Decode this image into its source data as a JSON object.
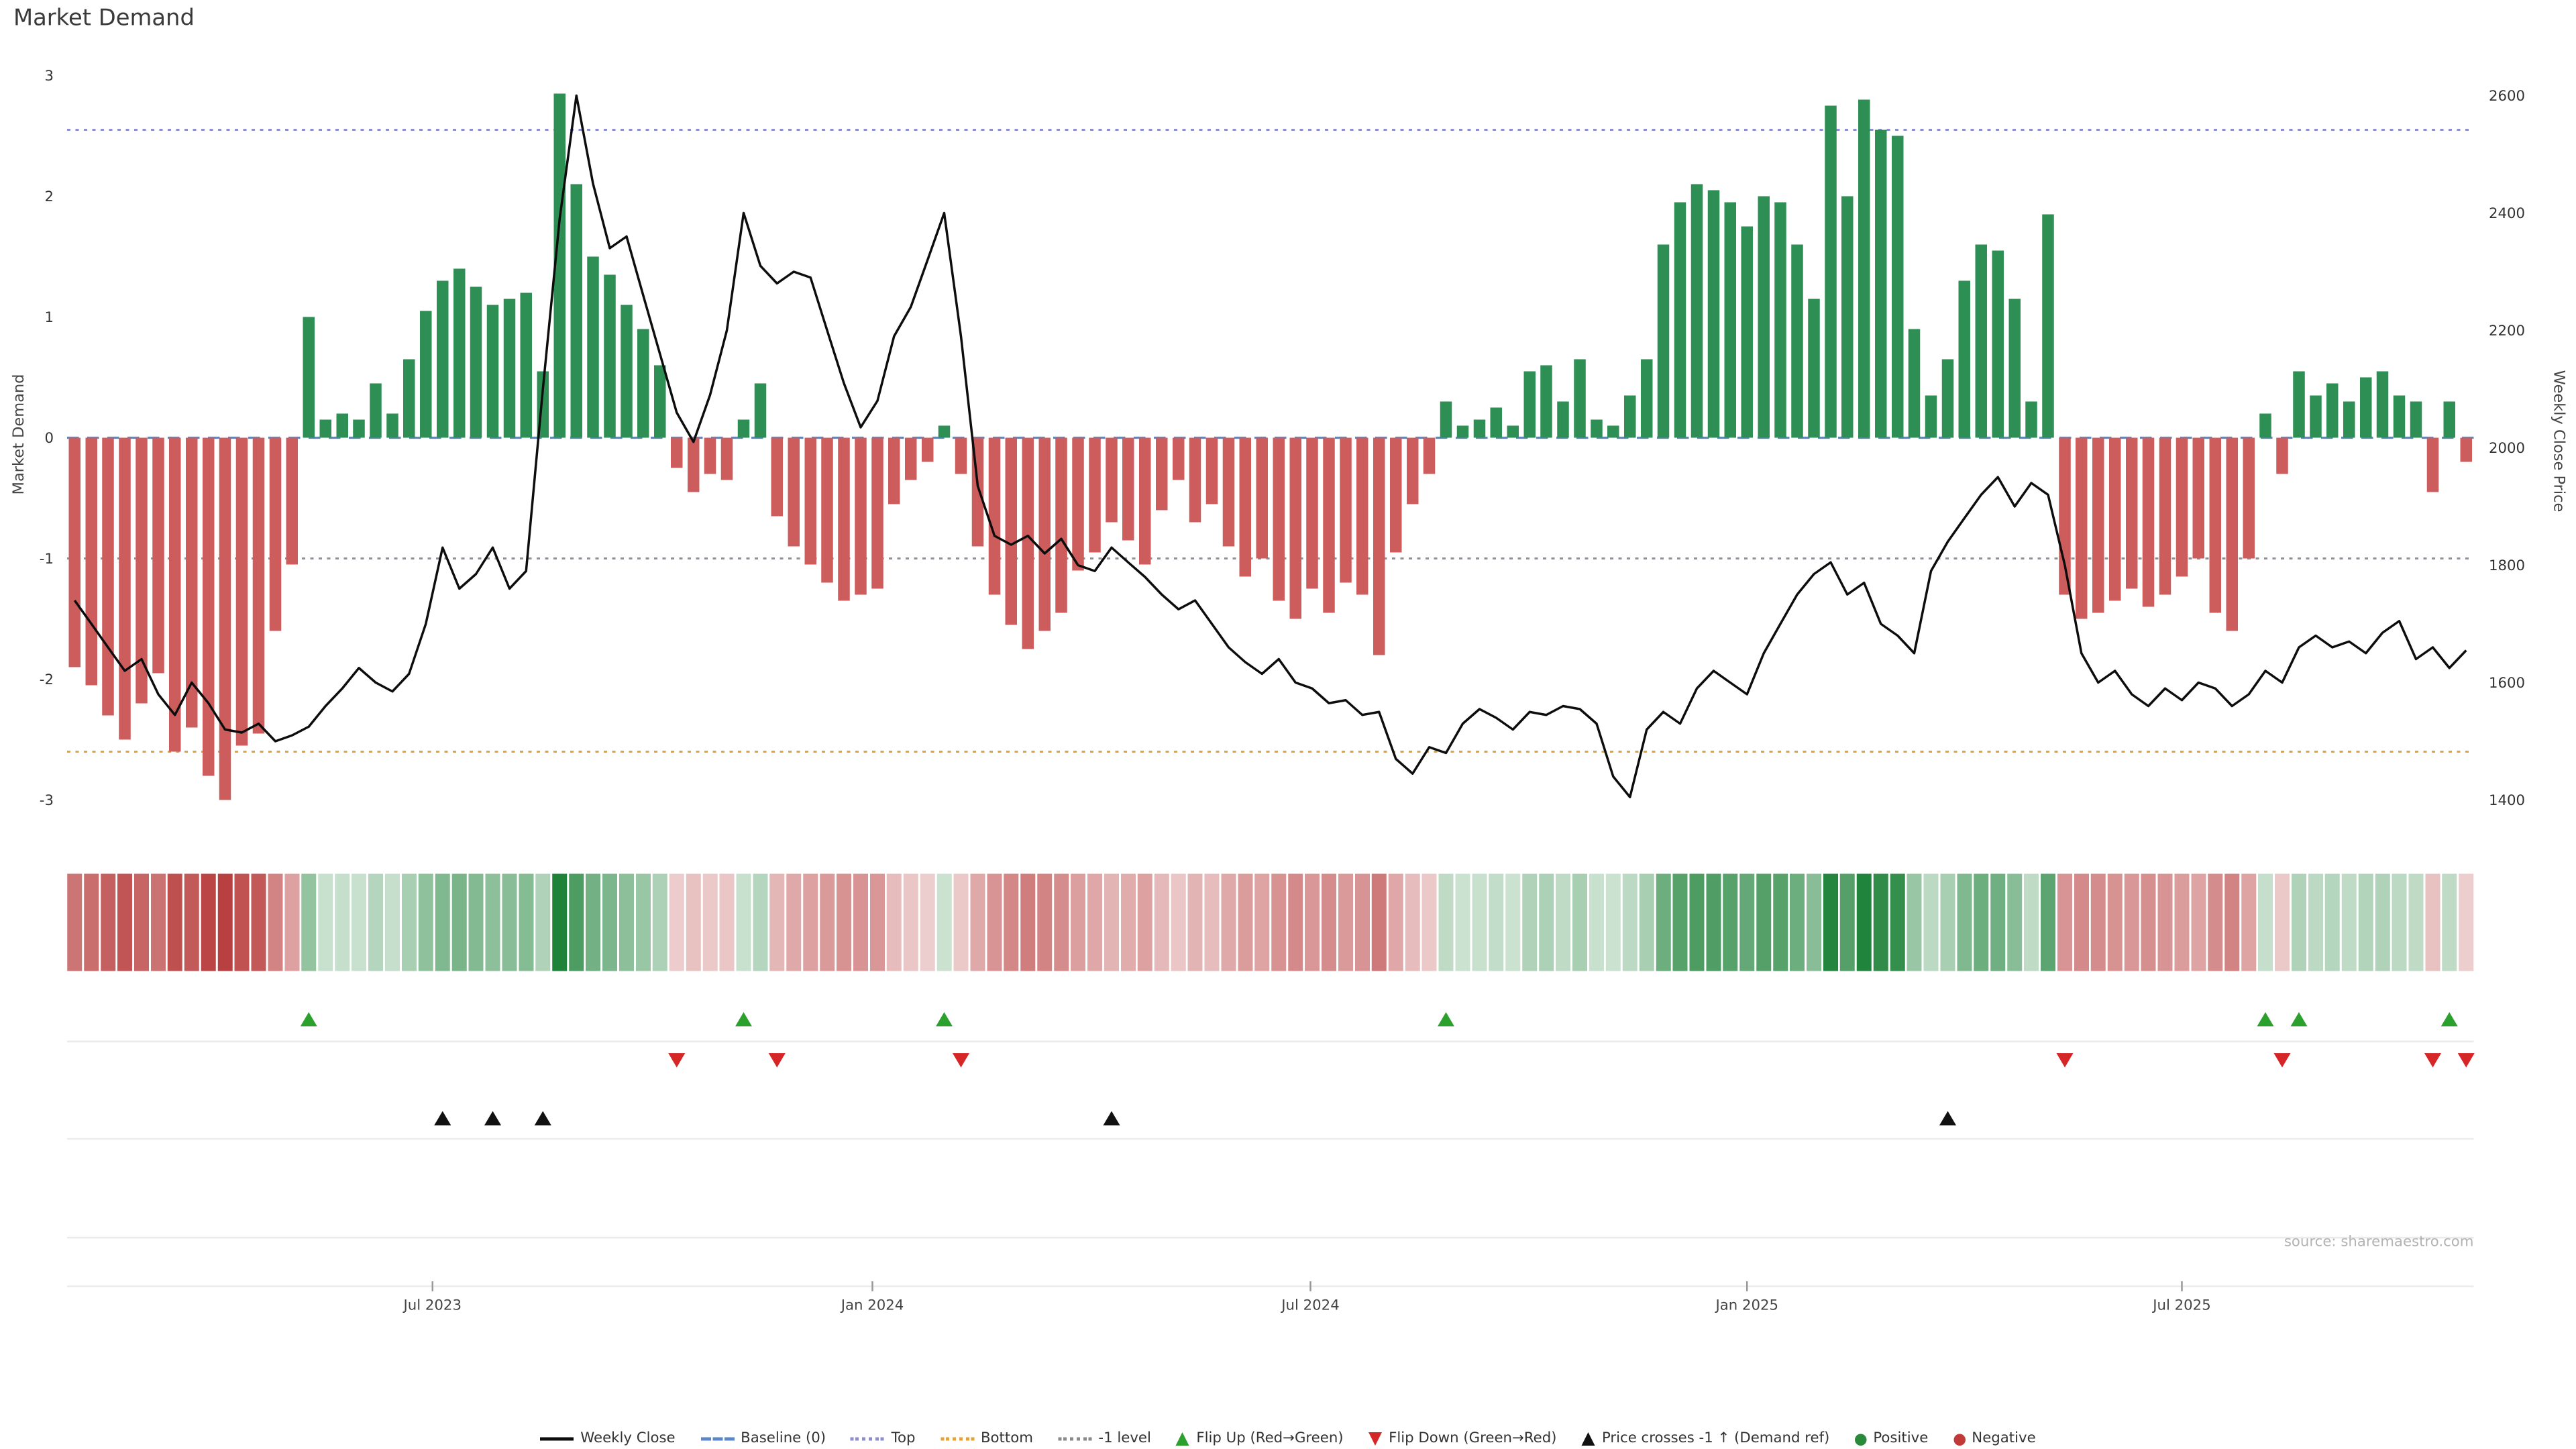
{
  "title": "Market Demand",
  "source": "source: sharemaestro.com",
  "axes": {
    "left_label": "Market Demand",
    "right_label": "Weekly Close Price",
    "left_ticks": [
      3,
      2,
      1,
      0,
      -1,
      -2,
      -3
    ],
    "right_ticks": [
      2600,
      2400,
      2200,
      2000,
      1800,
      1600,
      1400
    ],
    "x_ticks": [
      {
        "label": "Jul 2023",
        "index": 21.4
      },
      {
        "label": "Jan 2024",
        "index": 47.7
      },
      {
        "label": "Jul 2024",
        "index": 73.9
      },
      {
        "label": "Jan 2025",
        "index": 100.0
      },
      {
        "label": "Jul 2025",
        "index": 126.0
      }
    ]
  },
  "colors": {
    "positive": "#2e8f55",
    "negative": "#cd5c5c",
    "price_line": "#0d0d0d",
    "baseline_line": "#5b87c9",
    "top_line": "#8d8dd4",
    "bottom_line": "#e2a33c",
    "minus_one_line": "#8f8f9c",
    "flip_up": "#2ca02c",
    "flip_down": "#d62728",
    "price_cross": "#111111",
    "heat_green": "#1b8036",
    "heat_red": "#b94040"
  },
  "chart_data": {
    "type": "bar",
    "title": "Market Demand",
    "x_unit": "week",
    "x_range_label": "early 2023 to late 2025",
    "ylabel_left": "Market Demand",
    "ylabel_right": "Weekly Close Price",
    "ylim_left": [
      -3,
      3
    ],
    "ylim_right": [
      1400,
      2600
    ],
    "grid": false,
    "legend_position": "bottom",
    "reference_lines": {
      "baseline": 0,
      "top": 2.55,
      "bottom": -2.6,
      "minus_one": -1
    },
    "series": [
      {
        "name": "Market Demand",
        "type": "bar",
        "values": [
          -1.9,
          -2.05,
          -2.3,
          -2.5,
          -2.2,
          -1.95,
          -2.6,
          -2.4,
          -2.8,
          -3.0,
          -2.55,
          -2.45,
          -1.6,
          -1.05,
          1.0,
          0.15,
          0.2,
          0.15,
          0.45,
          0.2,
          0.65,
          1.05,
          1.3,
          1.4,
          1.25,
          1.1,
          1.15,
          1.2,
          0.55,
          2.85,
          2.1,
          1.5,
          1.35,
          1.1,
          0.9,
          0.6,
          -0.25,
          -0.45,
          -0.3,
          -0.35,
          0.15,
          0.45,
          -0.65,
          -0.9,
          -1.05,
          -1.2,
          -1.35,
          -1.3,
          -1.25,
          -0.55,
          -0.35,
          -0.2,
          0.1,
          -0.3,
          -0.9,
          -1.3,
          -1.55,
          -1.75,
          -1.6,
          -1.45,
          -1.1,
          -0.95,
          -0.7,
          -0.85,
          -1.05,
          -0.6,
          -0.35,
          -0.7,
          -0.55,
          -0.9,
          -1.15,
          -1.0,
          -1.35,
          -1.5,
          -1.25,
          -1.45,
          -1.2,
          -1.3,
          -1.8,
          -0.95,
          -0.55,
          -0.3,
          0.3,
          0.1,
          0.15,
          0.25,
          0.1,
          0.55,
          0.6,
          0.3,
          0.65,
          0.15,
          0.1,
          0.35,
          0.65,
          1.6,
          1.95,
          2.1,
          2.05,
          1.95,
          1.75,
          2.0,
          1.95,
          1.6,
          1.15,
          2.75,
          2.0,
          2.8,
          2.55,
          2.5,
          0.9,
          0.35,
          0.65,
          1.3,
          1.6,
          1.55,
          1.15,
          0.3,
          1.85,
          -1.3,
          -1.5,
          -1.45,
          -1.35,
          -1.25,
          -1.4,
          -1.3,
          -1.15,
          -1.0,
          -1.45,
          -1.6,
          -1.0,
          0.2,
          -0.3,
          0.55,
          0.35,
          0.45,
          0.3,
          0.5,
          0.55,
          0.35,
          0.3,
          -0.45,
          0.3,
          -0.2
        ]
      },
      {
        "name": "Weekly Close",
        "type": "line",
        "values": [
          1740,
          1700,
          1660,
          1620,
          1640,
          1580,
          1545,
          1600,
          1565,
          1520,
          1515,
          1530,
          1500,
          1510,
          1525,
          1560,
          1590,
          1625,
          1600,
          1585,
          1615,
          1700,
          1830,
          1760,
          1785,
          1830,
          1760,
          1790,
          2100,
          2390,
          2600,
          2450,
          2340,
          2360,
          2260,
          2160,
          2060,
          2010,
          2090,
          2200,
          2400,
          2310,
          2280,
          2300,
          2290,
          2200,
          2110,
          2035,
          2080,
          2190,
          2240,
          2320,
          2400,
          2190,
          1935,
          1850,
          1835,
          1850,
          1820,
          1845,
          1800,
          1790,
          1830,
          1805,
          1780,
          1750,
          1725,
          1740,
          1700,
          1660,
          1635,
          1615,
          1640,
          1600,
          1590,
          1565,
          1570,
          1545,
          1550,
          1470,
          1445,
          1490,
          1480,
          1530,
          1555,
          1540,
          1520,
          1550,
          1545,
          1560,
          1555,
          1530,
          1440,
          1405,
          1520,
          1550,
          1530,
          1590,
          1620,
          1600,
          1580,
          1650,
          1700,
          1750,
          1785,
          1805,
          1750,
          1770,
          1700,
          1680,
          1650,
          1790,
          1840,
          1880,
          1920,
          1950,
          1900,
          1940,
          1920,
          1800,
          1650,
          1600,
          1620,
          1580,
          1560,
          1590,
          1570,
          1600,
          1590,
          1560,
          1580,
          1620,
          1600,
          1660,
          1680,
          1660,
          1670,
          1650,
          1685,
          1705,
          1640,
          1660,
          1625,
          1655
        ]
      }
    ],
    "markers": {
      "flip_up_indices": [
        14,
        40,
        52,
        82,
        131,
        133,
        142
      ],
      "flip_down_indices": [
        36,
        42,
        53,
        119,
        132,
        141,
        143
      ],
      "price_cross_indices": [
        22,
        25,
        28,
        62,
        112
      ]
    }
  },
  "legend": {
    "items": [
      {
        "key": "weekly-close",
        "type": "line",
        "color": "#0d0d0d",
        "label": "Weekly Close"
      },
      {
        "key": "baseline",
        "type": "dash",
        "color": "#5b87c9",
        "label": "Baseline (0)"
      },
      {
        "key": "top",
        "type": "dot",
        "color": "#8d8dd4",
        "label": "Top"
      },
      {
        "key": "bottom",
        "type": "dot",
        "color": "#e2a33c",
        "label": "Bottom"
      },
      {
        "key": "minus-one-level",
        "type": "dot",
        "color": "#8a8a8a",
        "label": "-1 level"
      },
      {
        "key": "flip-up",
        "type": "tri-up",
        "color": "#2ca02c",
        "label": "Flip Up (Red→Green)"
      },
      {
        "key": "flip-down",
        "type": "tri-down",
        "color": "#d62728",
        "label": "Flip Down (Green→Red)"
      },
      {
        "key": "price-crosses",
        "type": "tri-up",
        "color": "#111111",
        "label": "Price crosses -1 ↑ (Demand ref)"
      },
      {
        "key": "positive",
        "type": "circle",
        "color": "#2a8a3c",
        "label": "Positive"
      },
      {
        "key": "negative",
        "type": "circle",
        "color": "#c03a3a",
        "label": "Negative"
      }
    ]
  }
}
